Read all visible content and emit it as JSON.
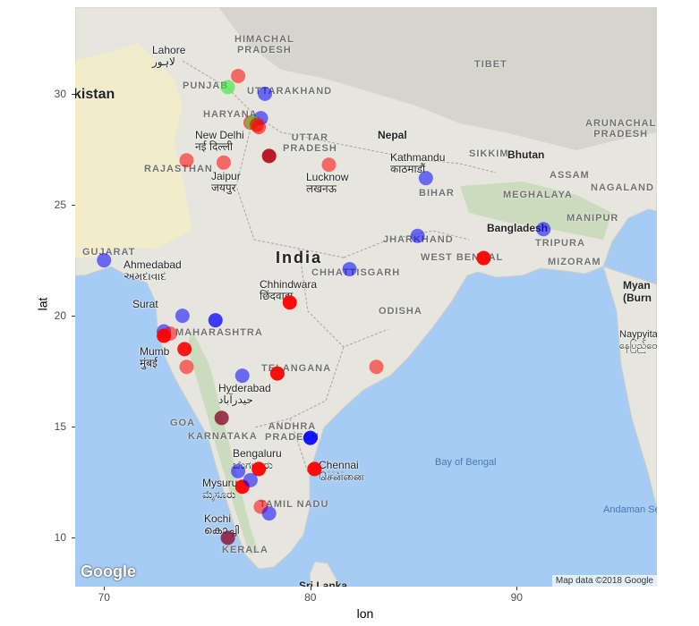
{
  "chart_data": {
    "type": "scatter",
    "xlabel": "lon",
    "ylabel": "lat",
    "xlim": [
      68.6,
      96.8
    ],
    "ylim": [
      7.8,
      33.9
    ],
    "x_ticks": [
      70,
      80,
      90
    ],
    "y_ticks": [
      10,
      15,
      20,
      25,
      30
    ],
    "grid": false,
    "legend": "none",
    "colors": {
      "red": "#ff0000",
      "blue": "#0000ff",
      "green": "#33e633",
      "dark": "#8b1a3a"
    },
    "points": [
      {
        "lon": 76.5,
        "lat": 30.8,
        "color": "red",
        "alpha": 0.55
      },
      {
        "lon": 76.0,
        "lat": 30.3,
        "color": "green",
        "alpha": 0.6
      },
      {
        "lon": 77.8,
        "lat": 30.0,
        "color": "blue",
        "alpha": 0.55
      },
      {
        "lon": 77.6,
        "lat": 28.9,
        "color": "blue",
        "alpha": 0.55
      },
      {
        "lon": 77.1,
        "lat": 28.7,
        "color": "red",
        "alpha": 0.6
      },
      {
        "lon": 77.2,
        "lat": 28.7,
        "color": "green",
        "alpha": 0.6
      },
      {
        "lon": 77.4,
        "lat": 28.6,
        "color": "red",
        "alpha": 0.6
      },
      {
        "lon": 77.5,
        "lat": 28.5,
        "color": "red",
        "alpha": 0.6
      },
      {
        "lon": 78.0,
        "lat": 27.2,
        "color": "red",
        "alpha": 0.9
      },
      {
        "lon": 78.0,
        "lat": 27.2,
        "color": "dark",
        "alpha": 0.6
      },
      {
        "lon": 74.0,
        "lat": 27.0,
        "color": "red",
        "alpha": 0.55
      },
      {
        "lon": 75.8,
        "lat": 26.9,
        "color": "red",
        "alpha": 0.55
      },
      {
        "lon": 80.9,
        "lat": 26.8,
        "color": "red",
        "alpha": 0.55
      },
      {
        "lon": 85.6,
        "lat": 26.2,
        "color": "blue",
        "alpha": 0.55
      },
      {
        "lon": 91.3,
        "lat": 23.9,
        "color": "blue",
        "alpha": 0.55
      },
      {
        "lon": 85.2,
        "lat": 23.6,
        "color": "blue",
        "alpha": 0.55
      },
      {
        "lon": 88.4,
        "lat": 22.6,
        "color": "red",
        "alpha": 0.95
      },
      {
        "lon": 70.0,
        "lat": 22.5,
        "color": "blue",
        "alpha": 0.55
      },
      {
        "lon": 81.9,
        "lat": 22.1,
        "color": "blue",
        "alpha": 0.55
      },
      {
        "lon": 79.0,
        "lat": 20.6,
        "color": "red",
        "alpha": 0.95
      },
      {
        "lon": 73.8,
        "lat": 20.0,
        "color": "blue",
        "alpha": 0.55
      },
      {
        "lon": 75.4,
        "lat": 19.8,
        "color": "blue",
        "alpha": 0.75
      },
      {
        "lon": 72.9,
        "lat": 19.3,
        "color": "blue",
        "alpha": 0.55
      },
      {
        "lon": 73.2,
        "lat": 19.2,
        "color": "red",
        "alpha": 0.55
      },
      {
        "lon": 72.9,
        "lat": 19.1,
        "color": "red",
        "alpha": 0.95
      },
      {
        "lon": 73.9,
        "lat": 18.5,
        "color": "red",
        "alpha": 0.9
      },
      {
        "lon": 74.0,
        "lat": 17.7,
        "color": "red",
        "alpha": 0.55
      },
      {
        "lon": 76.7,
        "lat": 17.3,
        "color": "blue",
        "alpha": 0.55
      },
      {
        "lon": 78.4,
        "lat": 17.4,
        "color": "red",
        "alpha": 0.95
      },
      {
        "lon": 83.2,
        "lat": 17.7,
        "color": "red",
        "alpha": 0.55
      },
      {
        "lon": 75.7,
        "lat": 15.4,
        "color": "dark",
        "alpha": 0.85
      },
      {
        "lon": 80.0,
        "lat": 14.5,
        "color": "blue",
        "alpha": 0.9
      },
      {
        "lon": 76.5,
        "lat": 13.0,
        "color": "blue",
        "alpha": 0.55
      },
      {
        "lon": 76.7,
        "lat": 12.3,
        "color": "red",
        "alpha": 0.95
      },
      {
        "lon": 77.5,
        "lat": 13.1,
        "color": "red",
        "alpha": 0.95
      },
      {
        "lon": 77.1,
        "lat": 12.6,
        "color": "blue",
        "alpha": 0.55
      },
      {
        "lon": 80.2,
        "lat": 13.1,
        "color": "red",
        "alpha": 0.95
      },
      {
        "lon": 77.6,
        "lat": 11.4,
        "color": "red",
        "alpha": 0.55
      },
      {
        "lon": 78.0,
        "lat": 11.1,
        "color": "blue",
        "alpha": 0.55
      },
      {
        "lon": 76.0,
        "lat": 10.0,
        "color": "dark",
        "alpha": 0.85
      }
    ]
  },
  "map_labels": {
    "lahore": "Lahore",
    "lahore_local": "لاہور",
    "pakistan": "kistan",
    "himachal": "HIMACHAL",
    "pradesh_1": "PRADESH",
    "punjab": "PUNJAB",
    "uttarakhand": "UTTARAKHAND",
    "haryana": "HARYANA",
    "tibet": "TIBET",
    "arunachal": "ARUNACHAL",
    "pradesh_2": "PRADESH",
    "new_delhi": "New Delhi",
    "new_delhi_local": "नई दिल्ली",
    "uttar": "UTTAR",
    "pradesh_3": "PRADESH",
    "nepal": "Nepal",
    "kathmandu": "Kathmandu",
    "kathmandu_local": "काठमाडौं",
    "sikkim": "SIKKIM",
    "bhutan": "Bhutan",
    "rajasthan": "RAJASTHAN",
    "jaipur": "Jaipur",
    "jaipur_local": "जयपुर",
    "lucknow": "Lucknow",
    "lucknow_local": "लखनऊ",
    "assam": "ASSAM",
    "nagaland": "NAGALAND",
    "bihar": "BIHAR",
    "meghalaya": "MEGHALAYA",
    "manipur": "MANIPUR",
    "bangladesh": "Bangladesh",
    "jharkhand": "JHARKHAND",
    "tripura": "TRIPURA",
    "gujarat": "GUJARAT",
    "india": "India",
    "west_bengal": "WEST BENGAL",
    "mizoram": "MIZORAM",
    "ahmedabad": "Ahmedabad",
    "ahmedabad_local": "અમદાવાદ",
    "chhindwara": "Chhindwara",
    "chhindwara_local": "छिंदवाड़ा",
    "chhattisgarh": "CHHATTISGARH",
    "myanmar": "Myan",
    "burma": "(Burn",
    "surat": "Surat",
    "odisha": "ODISHA",
    "maharashtra": "MAHARASHTRA",
    "naypyitaw": "Naypyita",
    "naypyitaw_local": "နေပြည်တေ",
    "mumbai": "Mumb",
    "mumbai_local": "मुंबई",
    "telangana": "TELANGANA",
    "hyderabad": "Hyderabad",
    "hyderabad_local": "حیدرآباد",
    "goa": "GOA",
    "andhra": "ANDHRA",
    "pradesh_4": "PRADESH",
    "karnataka": "KARNATAKA",
    "bengaluru": "Bengaluru",
    "bengaluru_local": "ಬೆಂಗಳೂರು",
    "chennai": "Chennai",
    "chennai_local": "சென்னை",
    "bay_of_bengal": "Bay of Bengal",
    "mysuru": "Mysuru",
    "mysuru_local": "ಮೈಸೂರು",
    "tamil_nadu": "TAMIL NADU",
    "andaman_sea": "Andaman Se",
    "kochi": "Kochi",
    "kochi_local": "കൊച്ചി",
    "kerala": "KERALA",
    "sri_lanka": "Sri Lanka"
  },
  "google_logo": "Google",
  "attribution": "Map data ©2018 Google"
}
